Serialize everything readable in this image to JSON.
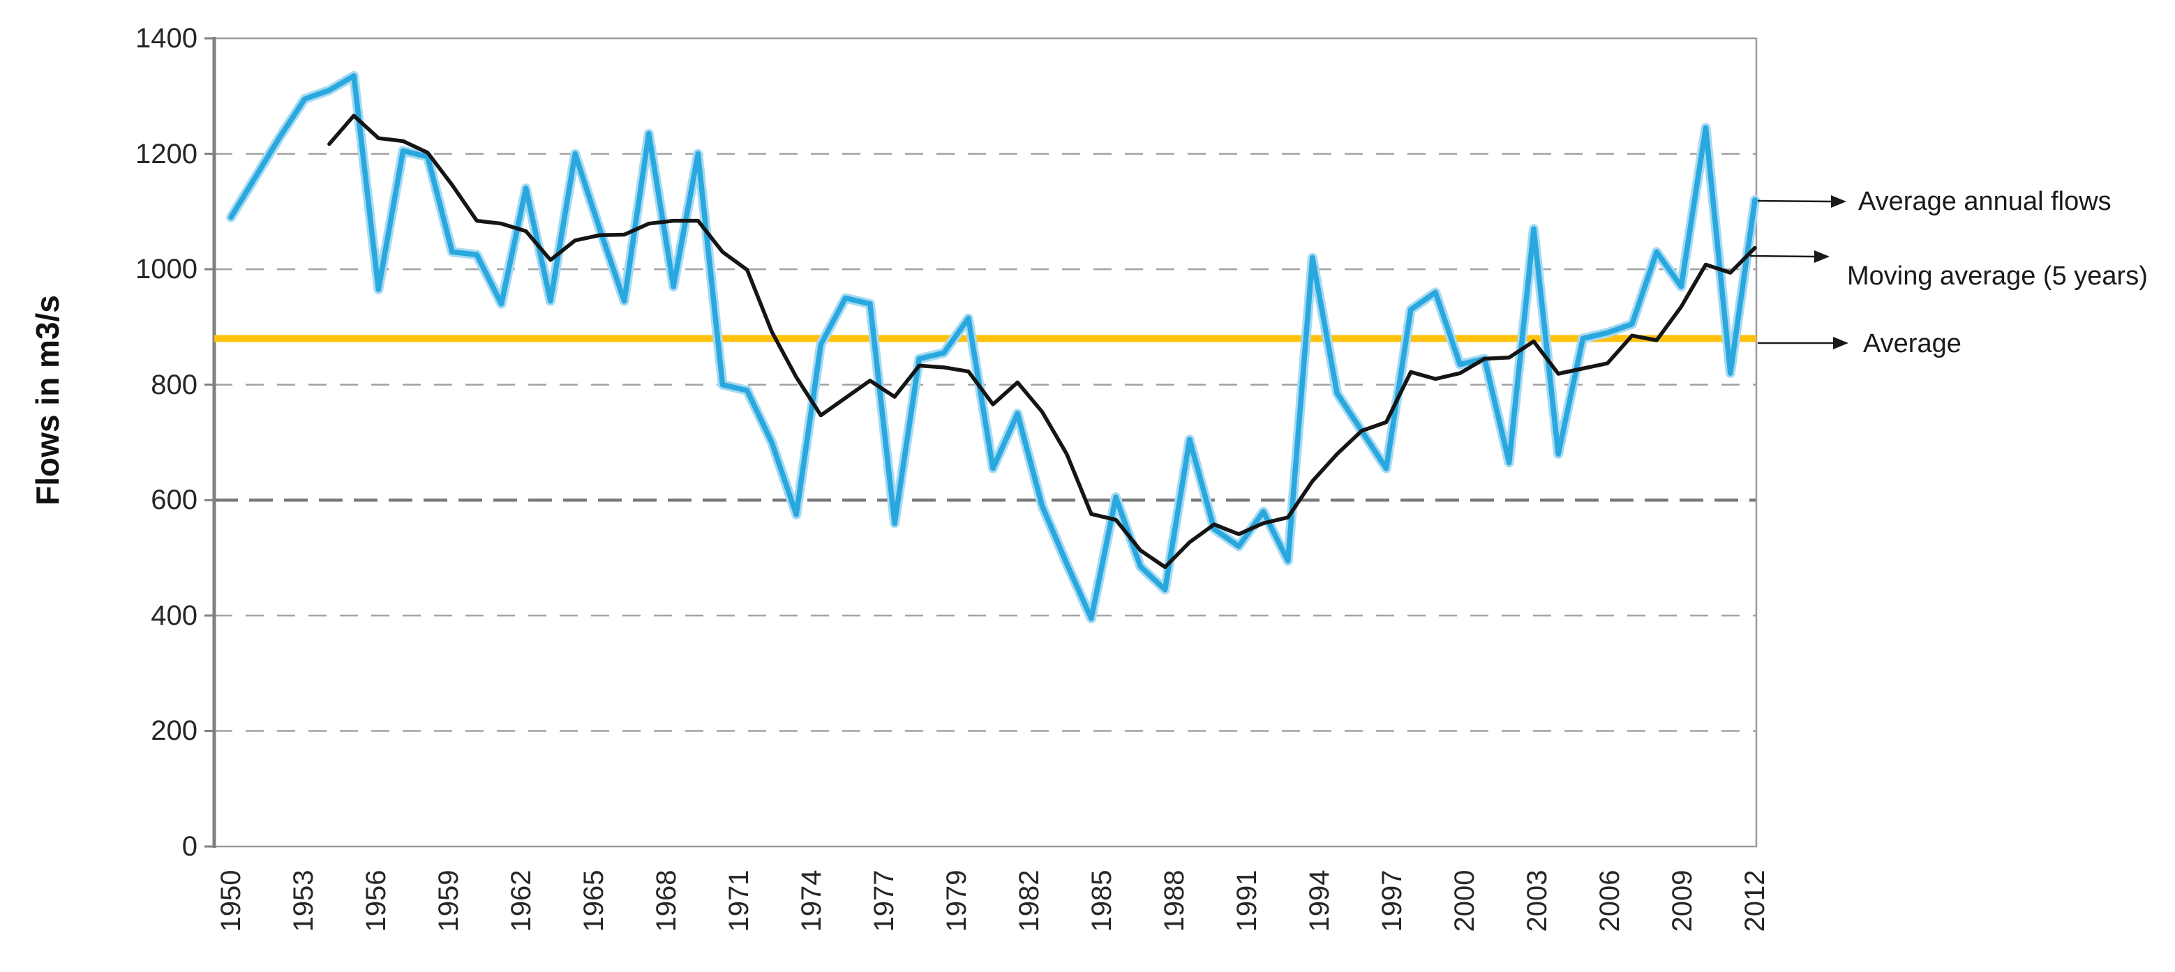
{
  "chart_data": {
    "type": "line",
    "title": "",
    "ylabel": "Flows in m3/s",
    "xlabel": "",
    "ylim": [
      0,
      1400
    ],
    "yticks": [
      0,
      200,
      400,
      600,
      800,
      1000,
      1200,
      1400
    ],
    "xtick_labels": [
      "1950",
      "1953",
      "1956",
      "1959",
      "1962",
      "1965",
      "1968",
      "1971",
      "1974",
      "1977",
      "1979",
      "1982",
      "1985",
      "1988",
      "1991",
      "1994",
      "1997",
      "2000",
      "2003",
      "2006",
      "2009",
      "2012"
    ],
    "grid": {
      "horizontal_dashed": true,
      "emphasized_gridline_value": 600
    },
    "legend_position": "right-arrow-annotations",
    "average_line": {
      "label": "Average",
      "value": 880,
      "color": "#FEC10D"
    },
    "x_years": [
      1950,
      1951,
      1952,
      1953,
      1954,
      1955,
      1956,
      1957,
      1958,
      1959,
      1960,
      1961,
      1962,
      1963,
      1964,
      1965,
      1966,
      1967,
      1968,
      1969,
      1970,
      1971,
      1972,
      1973,
      1974,
      1975,
      1976,
      1977,
      1978,
      1979,
      1980,
      1981,
      1982,
      1983,
      1984,
      1985,
      1986,
      1987,
      1988,
      1989,
      1990,
      1991,
      1992,
      1993,
      1994,
      1995,
      1996,
      1997,
      1998,
      1999,
      2000,
      2001,
      2002,
      2003,
      2004,
      2005,
      2006,
      2007,
      2008,
      2009,
      2010,
      2011,
      2012
    ],
    "series": [
      {
        "name": "Average annual flows",
        "color": "#29A8DF",
        "start_year": 1950,
        "values": [
          1090,
          1160,
          1230,
          1295,
          1310,
          1335,
          965,
          1205,
          1195,
          1030,
          1025,
          940,
          1140,
          945,
          1200,
          1070,
          945,
          1235,
          970,
          1200,
          800,
          790,
          700,
          575,
          870,
          950,
          940,
          560,
          845,
          855,
          915,
          655,
          750,
          590,
          490,
          395,
          605,
          485,
          445,
          705,
          550,
          520,
          580,
          495,
          1020,
          785,
          720,
          655,
          930,
          960,
          835,
          845,
          665,
          1070,
          680,
          880,
          890,
          905,
          1030,
          970,
          1245,
          820,
          1120
        ]
      },
      {
        "name": "Moving average (5 years)",
        "color": "#151515",
        "start_year": 1954,
        "values": [
          1217,
          1266,
          1227,
          1222,
          1202,
          1146,
          1084,
          1079,
          1066,
          1016,
          1050,
          1059,
          1060,
          1079,
          1084,
          1084,
          1030,
          999,
          892,
          813,
          747,
          777,
          807,
          779,
          833,
          830,
          823,
          766,
          804,
          753,
          680,
          576,
          566,
          513,
          484,
          527,
          558,
          541,
          560,
          570,
          633,
          680,
          720,
          735,
          822,
          810,
          820,
          845,
          847,
          875,
          819,
          828,
          837,
          885,
          877,
          935,
          1008,
          994,
          1037
        ]
      }
    ]
  },
  "legend": {
    "items": [
      {
        "label": "Average annual flows"
      },
      {
        "label": "Moving average (5 years)"
      },
      {
        "label": "Average"
      }
    ]
  },
  "colors": {
    "annual_flows_line": "#29A8DF",
    "annual_flows_halo": "#A7DAF2",
    "moving_average_line": "#151515",
    "average_line": "#FEC10D",
    "gridline": "#A2A2A2",
    "gridline_emphasized": "#787878",
    "axis_line": "#808080",
    "plot_border": "#9B9B9B",
    "tick_text": "#262626"
  }
}
